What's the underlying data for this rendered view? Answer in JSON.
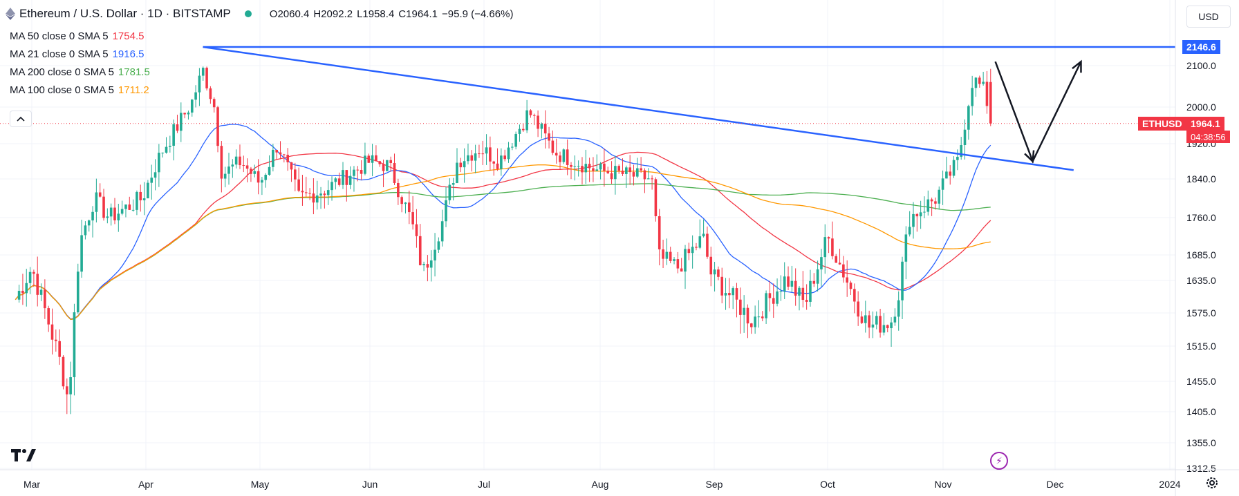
{
  "header": {
    "symbol_title": "Ethereum / U.S. Dollar · 1D · BITSTAMP",
    "ohlc": [
      {
        "k": "O",
        "v": "2060.4"
      },
      {
        "k": "H",
        "v": "2092.2"
      },
      {
        "k": "L",
        "v": "1958.4"
      },
      {
        "k": "C",
        "v": "1964.1"
      },
      {
        "k": "",
        "v": "−95.9 (−4.66%)"
      }
    ]
  },
  "indicators": [
    {
      "label": "MA 50 close 0 SMA 5",
      "value": "1754.5",
      "color": "#f23645"
    },
    {
      "label": "MA 21 close 0 SMA 5",
      "value": "1916.5",
      "color": "#2962ff"
    },
    {
      "label": "MA 200 close 0 SMA 5",
      "value": "1781.5",
      "color": "#4caf50"
    },
    {
      "label": "MA 100 close 0 SMA 5",
      "value": "1711.2",
      "color": "#ff9800"
    }
  ],
  "currency_button": "USD",
  "tags": {
    "resistance": "2146.6",
    "symbol": "ETHUSD",
    "last_price": "1964.1",
    "countdown": "04:38:56"
  },
  "colors": {
    "up": "#22ab94",
    "down": "#f23645",
    "trendline": "#2962ff",
    "ma50": "#f23645",
    "ma21": "#2962ff",
    "ma200": "#4caf50",
    "ma100": "#ff9800"
  },
  "chart_data": {
    "type": "candlestick",
    "title": "Ethereum / U.S. Dollar · 1D · BITSTAMP",
    "x_labels": [
      "Mar",
      "Apr",
      "May",
      "Jun",
      "Jul",
      "Aug",
      "Sep",
      "Oct",
      "Nov",
      "Dec",
      "2024"
    ],
    "y_ticks": [
      2100.0,
      2000.0,
      1920.0,
      1840.0,
      1760.0,
      1685.0,
      1635.0,
      1575.0,
      1515.0,
      1455.0,
      1405.0,
      1355.0,
      1312.5
    ],
    "price_points": [
      [
        "2023-02-25",
        1600
      ],
      [
        "2023-03-01",
        1660
      ],
      [
        "2023-03-09",
        1480
      ],
      [
        "2023-03-11",
        1420
      ],
      [
        "2023-03-14",
        1710
      ],
      [
        "2023-03-18",
        1800
      ],
      [
        "2023-03-22",
        1760
      ],
      [
        "2023-03-31",
        1800
      ],
      [
        "2023-04-05",
        1900
      ],
      [
        "2023-04-13",
        2010
      ],
      [
        "2023-04-16",
        2090
      ],
      [
        "2023-04-19",
        2000
      ],
      [
        "2023-04-21",
        1850
      ],
      [
        "2023-04-26",
        1880
      ],
      [
        "2023-05-01",
        1830
      ],
      [
        "2023-05-06",
        1920
      ],
      [
        "2023-05-12",
        1800
      ],
      [
        "2023-05-20",
        1820
      ],
      [
        "2023-06-01",
        1880
      ],
      [
        "2023-06-06",
        1870
      ],
      [
        "2023-06-12",
        1750
      ],
      [
        "2023-06-15",
        1650
      ],
      [
        "2023-06-20",
        1750
      ],
      [
        "2023-06-24",
        1880
      ],
      [
        "2023-06-30",
        1910
      ],
      [
        "2023-07-05",
        1880
      ],
      [
        "2023-07-13",
        1990
      ],
      [
        "2023-07-20",
        1900
      ],
      [
        "2023-07-31",
        1860
      ],
      [
        "2023-08-08",
        1850
      ],
      [
        "2023-08-15",
        1840
      ],
      [
        "2023-08-17",
        1680
      ],
      [
        "2023-08-22",
        1660
      ],
      [
        "2023-08-29",
        1720
      ],
      [
        "2023-08-31",
        1650
      ],
      [
        "2023-09-11",
        1560
      ],
      [
        "2023-09-20",
        1640
      ],
      [
        "2023-09-25",
        1590
      ],
      [
        "2023-10-01",
        1720
      ],
      [
        "2023-10-09",
        1590
      ],
      [
        "2023-10-12",
        1550
      ],
      [
        "2023-10-18",
        1560
      ],
      [
        "2023-10-20",
        1610
      ],
      [
        "2023-10-23",
        1760
      ],
      [
        "2023-10-30",
        1800
      ],
      [
        "2023-11-05",
        1880
      ],
      [
        "2023-11-09",
        2070
      ],
      [
        "2023-11-12",
        2040
      ],
      [
        "2023-11-14",
        1964.1
      ]
    ],
    "last_ohlc": {
      "open": 2060.4,
      "high": 2092.2,
      "low": 1958.4,
      "close": 1964.1,
      "change": -95.9,
      "change_pct": -4.66
    },
    "moving_averages": [
      {
        "name": "MA 50",
        "last": 1754.5
      },
      {
        "name": "MA 21",
        "last": 1916.5
      },
      {
        "name": "MA 200",
        "last": 1781.5
      },
      {
        "name": "MA 100",
        "last": 1711.2
      }
    ],
    "annotations": {
      "horizontal_resistance": 2146.6,
      "descending_trendline": {
        "from": [
          "2023-04-16",
          2146.6
        ],
        "to": [
          "2023-12-06",
          1860
        ]
      },
      "arrow_path": [
        [
          "2023-11-15",
          2110
        ],
        [
          "2023-11-25",
          1880
        ],
        [
          "2023-12-08",
          2110
        ]
      ]
    },
    "grid": true,
    "legend": "top-left"
  }
}
